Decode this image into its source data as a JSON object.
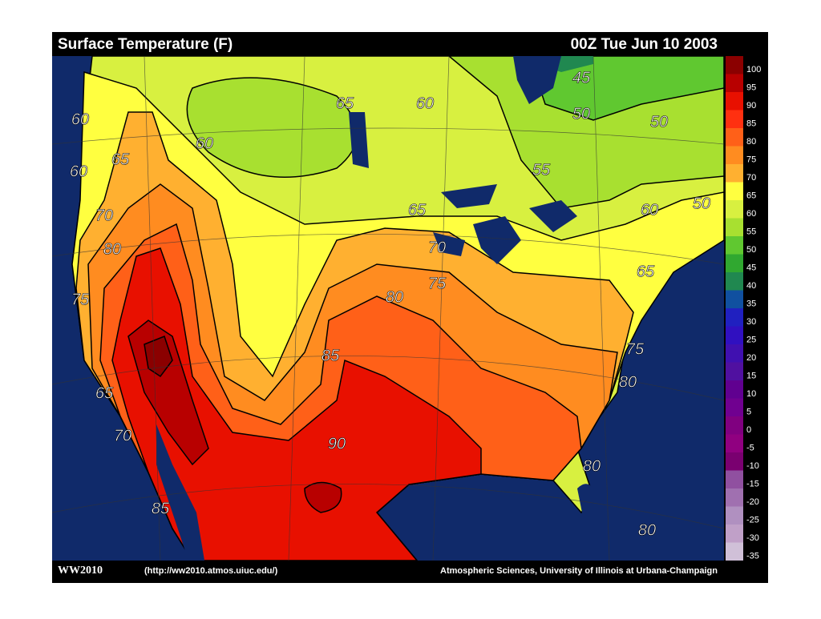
{
  "header": {
    "title": "Surface Temperature (F)",
    "timestamp": "00Z Tue Jun 10 2003"
  },
  "map": {
    "contour_labels": [
      "60",
      "60",
      "65",
      "60",
      "65",
      "60",
      "45",
      "50",
      "50",
      "55",
      "65",
      "60",
      "50",
      "70",
      "80",
      "70",
      "75",
      "80",
      "65",
      "75",
      "85",
      "75",
      "80",
      "65",
      "70",
      "90",
      "80",
      "85",
      "80"
    ]
  },
  "legend": {
    "entries": [
      {
        "label": "100",
        "color": "#8b0000"
      },
      {
        "label": "95",
        "color": "#b80000"
      },
      {
        "label": "90",
        "color": "#e81000"
      },
      {
        "label": "85",
        "color": "#ff3010"
      },
      {
        "label": "80",
        "color": "#ff6018"
      },
      {
        "label": "75",
        "color": "#ff8c20"
      },
      {
        "label": "70",
        "color": "#ffb030"
      },
      {
        "label": "65",
        "color": "#ffff40"
      },
      {
        "label": "60",
        "color": "#d8f040"
      },
      {
        "label": "55",
        "color": "#a8e030"
      },
      {
        "label": "50",
        "color": "#60c830"
      },
      {
        "label": "45",
        "color": "#30a830"
      },
      {
        "label": "40",
        "color": "#208850"
      },
      {
        "label": "35",
        "color": "#1050a0"
      },
      {
        "label": "30",
        "color": "#2020c0"
      },
      {
        "label": "25",
        "color": "#3010c0"
      },
      {
        "label": "20",
        "color": "#4010b0"
      },
      {
        "label": "15",
        "color": "#5010a0"
      },
      {
        "label": "10",
        "color": "#600090"
      },
      {
        "label": "5",
        "color": "#700090"
      },
      {
        "label": "0",
        "color": "#800080"
      },
      {
        "label": "-5",
        "color": "#900080"
      },
      {
        "label": "-10",
        "color": "#7a0070"
      },
      {
        "label": "-15",
        "color": "#9050a0"
      },
      {
        "label": "-20",
        "color": "#a070b0"
      },
      {
        "label": "-25",
        "color": "#b090c0"
      },
      {
        "label": "-30",
        "color": "#c0a0c8"
      },
      {
        "label": "-35",
        "color": "#d0c0d8"
      }
    ]
  },
  "footer": {
    "logo": "WW2010",
    "url": "(http://ww2010.atmos.uiuc.edu/)",
    "credit": "Atmospheric Sciences, University of Illinois at Urbana-Champaign"
  }
}
